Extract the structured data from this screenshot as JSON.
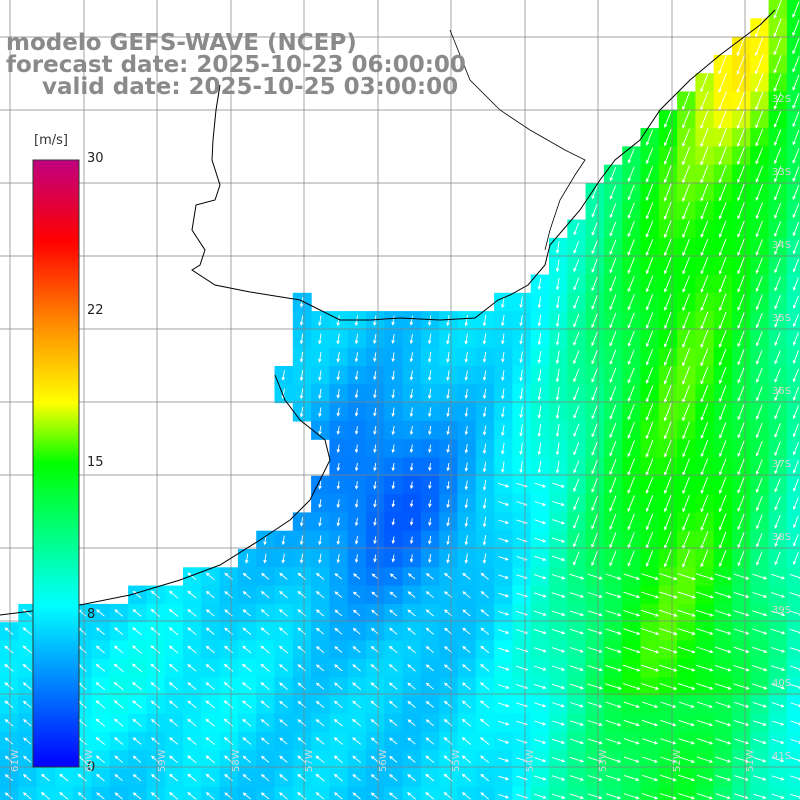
{
  "title": {
    "line1": "modelo GEFS-WAVE (NCEP)",
    "line2": "forecast date: 2025-10-23 06:00:00",
    "line3": "valid date: 2025-10-25 03:00:00"
  },
  "colorbar": {
    "unit": "[m/s]",
    "ticks": [
      "30",
      "22",
      "15",
      "8",
      "0"
    ],
    "range": [
      0,
      30
    ],
    "stops": [
      {
        "v": 0,
        "color": "#0000ff"
      },
      {
        "v": 8,
        "color": "#00ffff"
      },
      {
        "v": 15,
        "color": "#00ff00"
      },
      {
        "v": 18,
        "color": "#ffff00"
      },
      {
        "v": 22,
        "color": "#ff8800"
      },
      {
        "v": 26,
        "color": "#ff0000"
      },
      {
        "v": 30,
        "color": "#c00080"
      }
    ]
  },
  "lat_labels": [
    "32S",
    "33S",
    "34S",
    "35S",
    "36S",
    "37S",
    "38S",
    "39S",
    "40S",
    "41S"
  ],
  "lon_labels": [
    "61W",
    "60W",
    "59W",
    "58W",
    "57W",
    "56W",
    "55W",
    "54W",
    "53W",
    "52W",
    "51W"
  ],
  "colors": {
    "land": "#ffffff",
    "coastline": "#000000",
    "grid": "#808080",
    "arrows": "#ffffff",
    "title_text": "#8a8a8a"
  }
}
